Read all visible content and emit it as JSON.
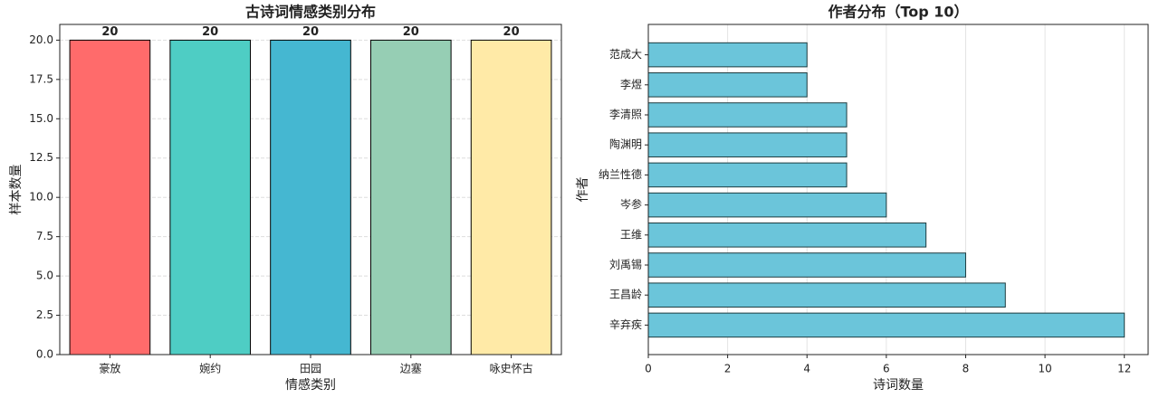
{
  "chart_data": [
    {
      "type": "bar",
      "title": "古诗词情感类别分布",
      "xlabel": "情感类别",
      "ylabel": "样本数量",
      "categories": [
        "豪放",
        "婉约",
        "田园",
        "边塞",
        "咏史怀古"
      ],
      "values": [
        20,
        20,
        20,
        20,
        20
      ],
      "colors": [
        "#ff6b6b",
        "#4ecdc4",
        "#45b7d1",
        "#96ceb4",
        "#ffeaa7"
      ],
      "ylim": [
        0,
        21
      ],
      "yticks": [
        {
          "value": 0,
          "label": "0.0"
        },
        {
          "value": 2.5,
          "label": "2.5"
        },
        {
          "value": 5,
          "label": "5.0"
        },
        {
          "value": 7.5,
          "label": "7.5"
        },
        {
          "value": 10,
          "label": "10.0"
        },
        {
          "value": 12.5,
          "label": "12.5"
        },
        {
          "value": 15,
          "label": "15.0"
        },
        {
          "value": 17.5,
          "label": "17.5"
        },
        {
          "value": 20,
          "label": "20.0"
        }
      ],
      "grid": true
    },
    {
      "type": "barh",
      "title": "作者分布（Top 10）",
      "xlabel": "诗词数量",
      "ylabel": "作者",
      "categories": [
        "范成大",
        "李煜",
        "李清照",
        "陶渊明",
        "纳兰性德",
        "岑参",
        "王维",
        "刘禹锡",
        "王昌龄",
        "辛弃疾"
      ],
      "values": [
        4,
        4,
        5,
        5,
        5,
        6,
        7,
        8,
        9,
        12
      ],
      "color": "#6bc5da",
      "xlim": [
        0,
        12.6
      ],
      "xticks": [
        0,
        2,
        4,
        6,
        8,
        10,
        12
      ],
      "grid": true
    }
  ]
}
